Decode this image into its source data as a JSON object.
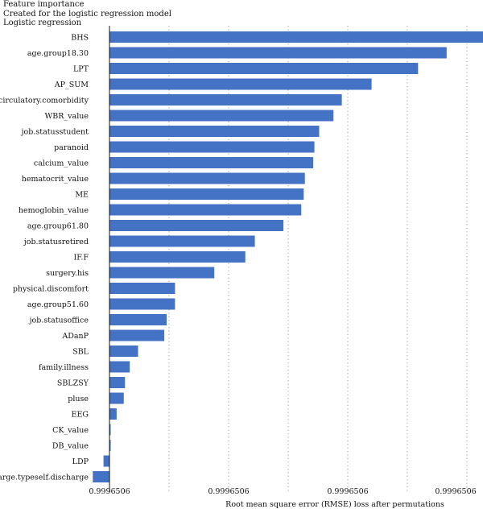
{
  "header": {
    "title": "Feature importance",
    "subtitle": "Created for the logistic regression model",
    "model_label": "Logistic regression"
  },
  "chart_data": {
    "type": "bar",
    "orientation": "horizontal",
    "title": "Feature importance",
    "subtitle": "Created for the logistic regression model",
    "model": "Logistic regression",
    "xlabel": "Root mean square error (RMSE) loss after permutations",
    "ylabel": "",
    "x_tick_labels": [
      "0.9996506",
      "0.9996506",
      "0.9996506",
      "0.9996506"
    ],
    "grid": "vertical dotted",
    "baseline": 0,
    "xlim": [
      -0.14,
      3.14
    ],
    "categories": [
      "BHS",
      "age.group18.30",
      "LPT",
      "AP_SUM",
      "circulatory.comorbidity",
      "WBR_value",
      "job.statusstudent",
      "paranoid",
      "calcium_value",
      "hematocrit_value",
      "ME",
      "hemoglobin_value",
      "age.group61.80",
      "job.statusretired",
      "IF.F",
      "surgery.his",
      "physical.discomfort",
      "age.group51.60",
      "job.statusoffice",
      "ADanP",
      "SBL",
      "family.illness",
      "SBLZSY",
      "pluse",
      "EEG",
      "CK_value",
      "DB_value",
      "LDP",
      "discharge.typeself.discharge"
    ],
    "values": [
      3.14,
      2.83,
      2.59,
      2.2,
      1.95,
      1.88,
      1.76,
      1.72,
      1.71,
      1.64,
      1.63,
      1.61,
      1.46,
      1.22,
      1.14,
      0.88,
      0.55,
      0.55,
      0.48,
      0.46,
      0.24,
      0.17,
      0.13,
      0.12,
      0.06,
      0.01,
      0.01,
      -0.05,
      -0.14
    ],
    "series": [
      {
        "name": "Logistic regression"
      }
    ],
    "bar_color": "#4472c4"
  }
}
